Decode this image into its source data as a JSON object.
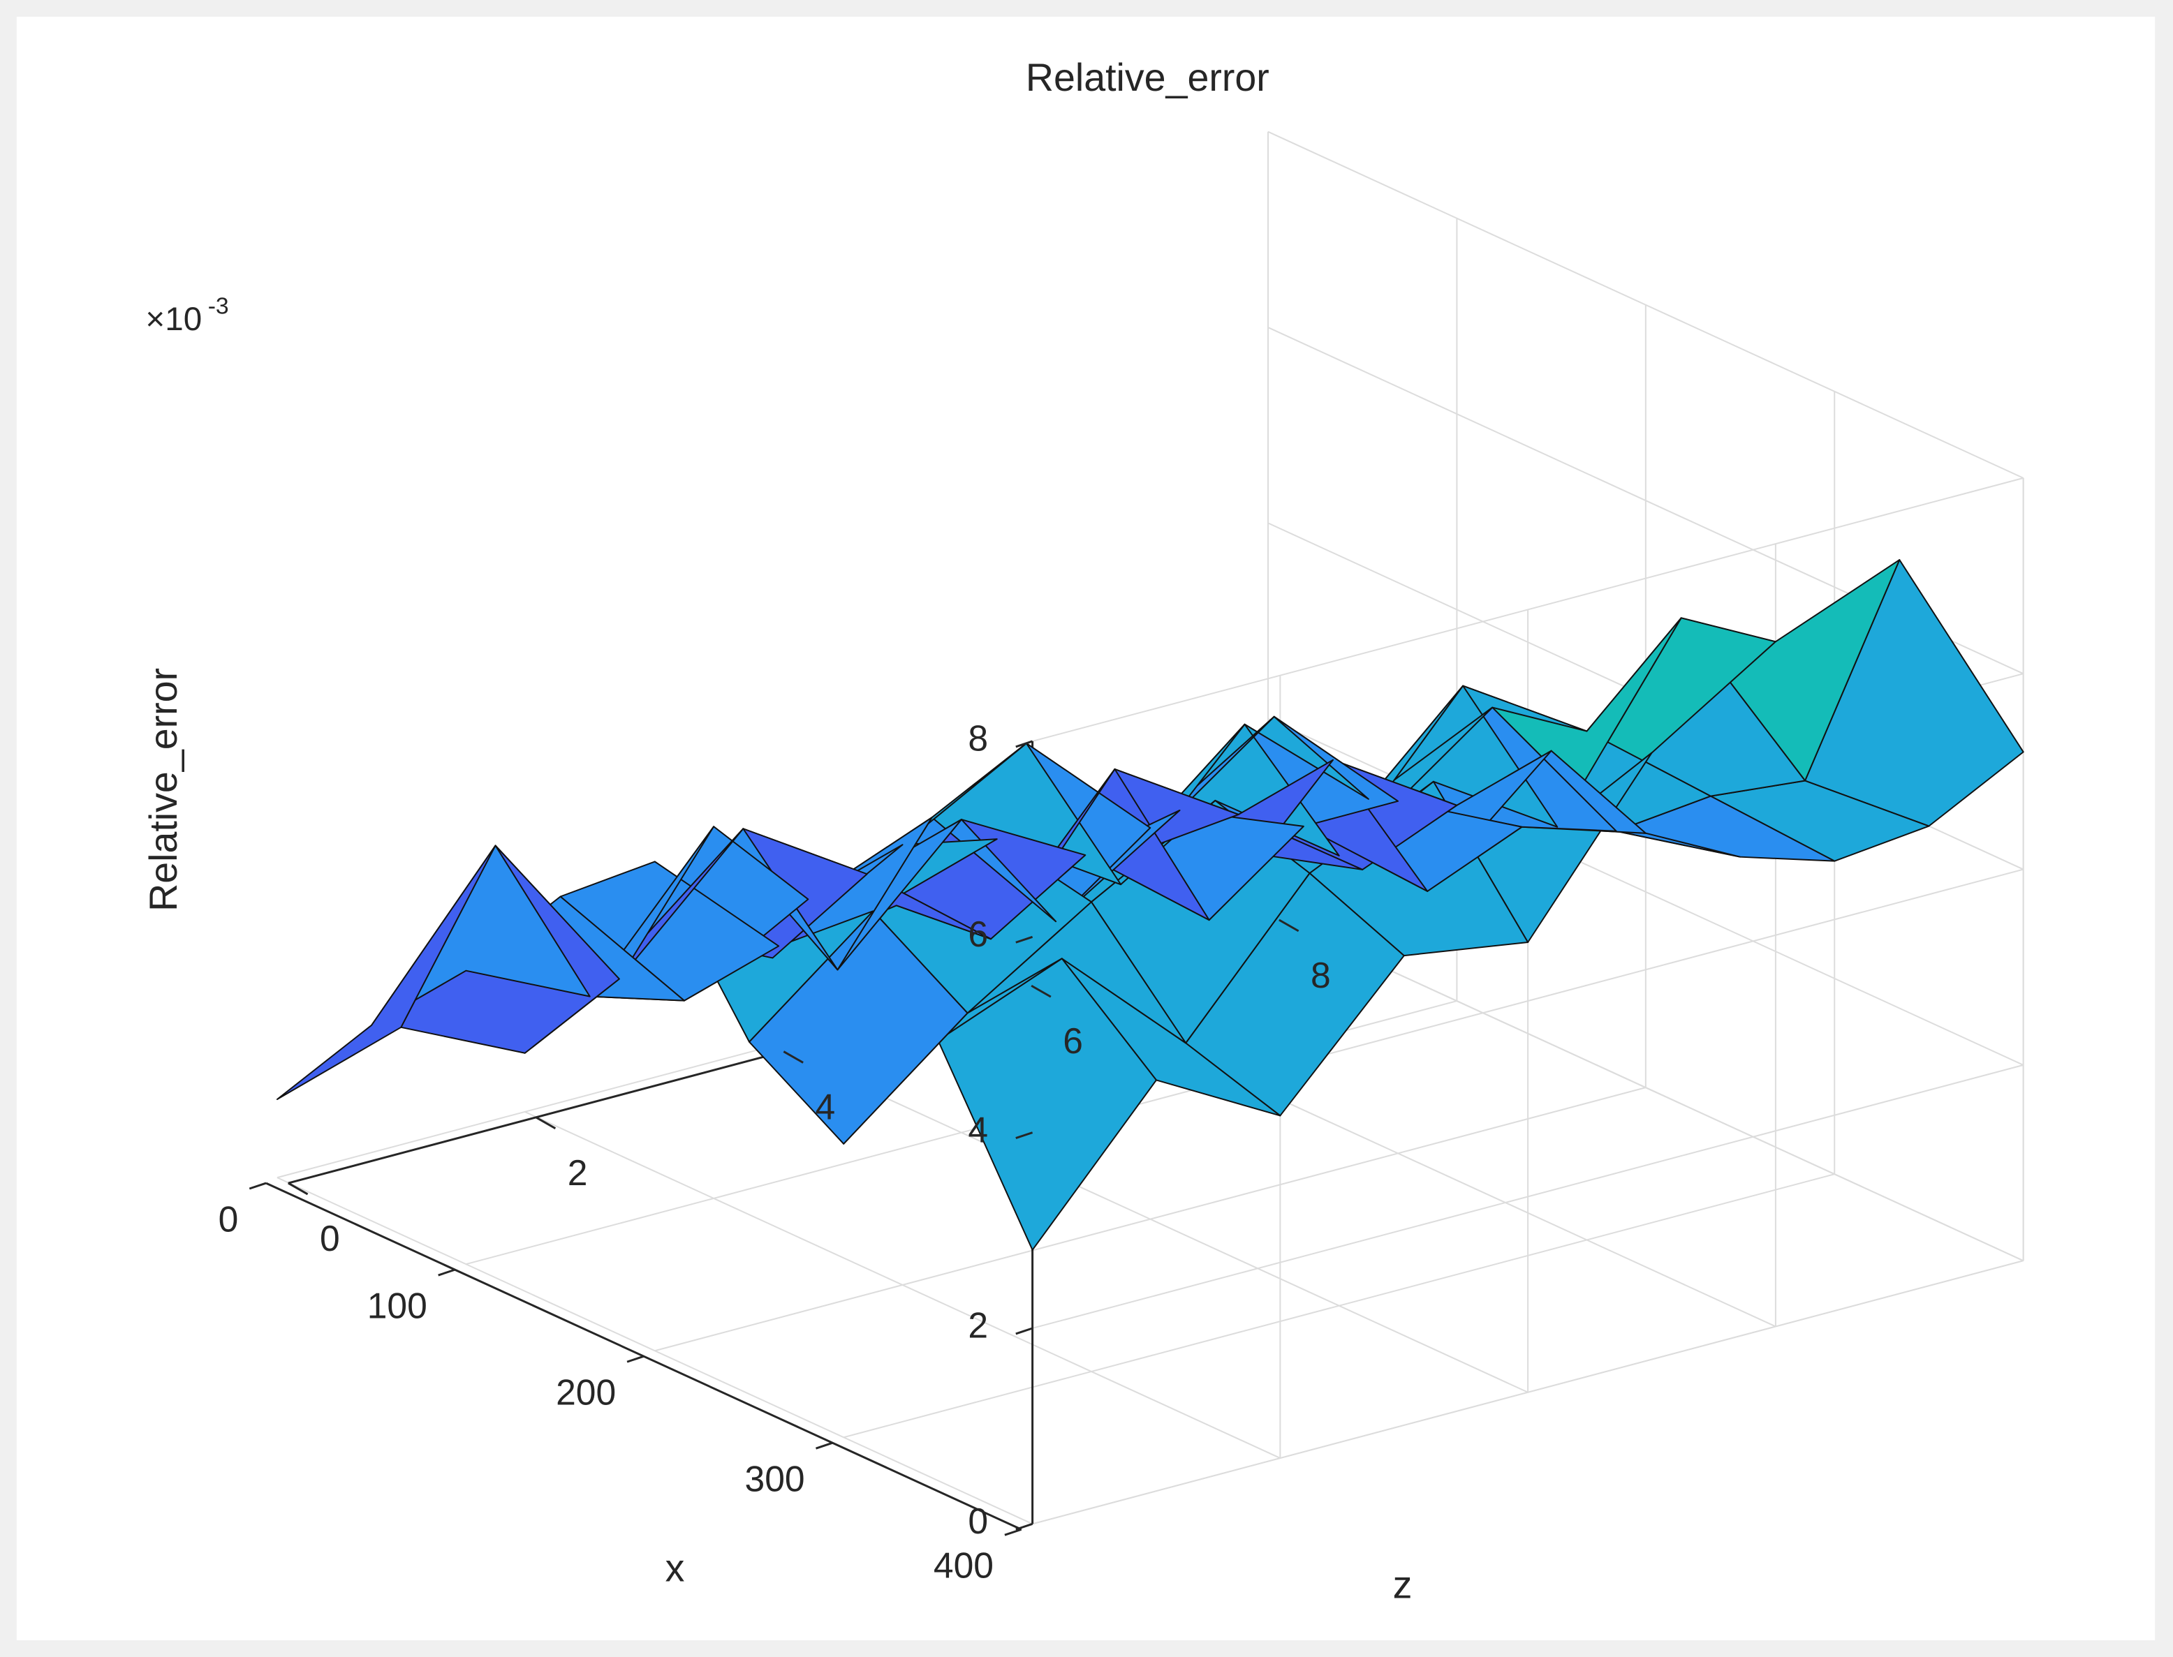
{
  "chart_data": {
    "type": "surface",
    "title": "Relative_error",
    "x_label": "x",
    "z_label": "z",
    "value_label": "Relative_error",
    "multiplier_base": "×10",
    "multiplier_exponent": "-3",
    "x": [
      0,
      50,
      100,
      150,
      200,
      250,
      300,
      350,
      400
    ],
    "z": [
      0,
      1,
      2,
      3,
      4,
      5,
      6,
      7,
      8
    ],
    "values": [
      [
        0.0008,
        0.0012,
        0.0006,
        0.0015,
        0.0009,
        0.0011,
        0.0007,
        0.001,
        0.0006
      ],
      [
        0.002,
        0.0035,
        0.0018,
        0.003,
        0.0022,
        0.0012,
        0.0026,
        0.0018,
        0.0009
      ],
      [
        0.003,
        0.0024,
        0.0038,
        0.002,
        0.0032,
        0.0025,
        0.0015,
        0.0028,
        0.002
      ],
      [
        0.0042,
        0.0028,
        0.0035,
        0.004,
        0.0026,
        0.0034,
        0.0029,
        0.0019,
        0.003
      ],
      [
        0.005,
        0.0038,
        0.0045,
        0.0052,
        0.004,
        0.0048,
        0.0036,
        0.003,
        0.0026
      ],
      [
        0.0036,
        0.0046,
        0.005,
        0.0042,
        0.0055,
        0.0044,
        0.005,
        0.0034,
        0.0028
      ],
      [
        0.003,
        0.004,
        0.0048,
        0.0055,
        0.0046,
        0.006,
        0.0052,
        0.0042,
        0.0032
      ],
      [
        0.0045,
        0.005,
        0.0038,
        0.0052,
        0.0058,
        0.005,
        0.0068,
        0.0048,
        0.004
      ],
      [
        0.0028,
        0.0042,
        0.0035,
        0.0048,
        0.0046,
        0.0062,
        0.007,
        0.0075,
        0.0052
      ]
    ],
    "xlim": [
      0,
      400
    ],
    "xticks": [
      0,
      100,
      200,
      300,
      400
    ],
    "zlim": [
      0,
      8
    ],
    "zticks": [
      0,
      2,
      4,
      6,
      8
    ],
    "ylim": [
      0,
      0.008
    ],
    "yticks": [
      0,
      {
        "value": 0.002,
        "label": "2"
      },
      {
        "value": 0.004,
        "label": "4"
      },
      {
        "value": 0.006,
        "label": "6"
      },
      {
        "value": 0.008,
        "label": "8"
      }
    ],
    "grid": true,
    "colormap": [
      "#3b32c8",
      "#4060f0",
      "#2a8ef0",
      "#1ea8da",
      "#14bcb8",
      "#2fd08a"
    ]
  }
}
